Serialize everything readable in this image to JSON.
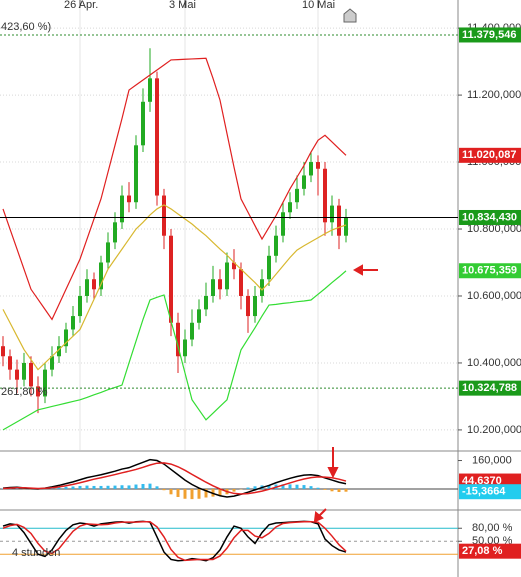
{
  "chart_data": [
    {
      "type": "candlestick",
      "categories": [
        null,
        null,
        null,
        null,
        null,
        null,
        null,
        null,
        null,
        null,
        null,
        "26 Apr.",
        null,
        null,
        null,
        null,
        null,
        null,
        null,
        null,
        null,
        null,
        null,
        null,
        null,
        null,
        "3 Mai",
        null,
        null,
        null,
        null,
        null,
        null,
        null,
        null,
        null,
        null,
        null,
        null,
        null,
        null,
        null,
        null,
        null,
        null,
        "10 Mai",
        null,
        null,
        null,
        null
      ],
      "open": [
        10450,
        10420,
        10380,
        10350,
        10400,
        10330,
        10300,
        10380,
        10420,
        10450,
        10500,
        10540,
        10600,
        10650,
        10620,
        10700,
        10760,
        10820,
        10900,
        10880,
        11050,
        11180,
        11250,
        10900,
        10780,
        10520,
        10420,
        10470,
        10520,
        10560,
        10600,
        10650,
        10620,
        10700,
        10680,
        10600,
        10540,
        10600,
        10650,
        10720,
        10780,
        10850,
        10880,
        10920,
        10960,
        11000,
        10980,
        10820,
        10870,
        10780
      ],
      "high": [
        10480,
        10440,
        10410,
        10430,
        10420,
        10360,
        10400,
        10450,
        10480,
        10520,
        10570,
        10630,
        10680,
        10670,
        10720,
        10790,
        10850,
        10930,
        10940,
        11080,
        11220,
        11340,
        11270,
        10920,
        10800,
        10550,
        10500,
        10560,
        10590,
        10640,
        10690,
        10680,
        10730,
        10740,
        10700,
        10620,
        10630,
        10680,
        10750,
        10810,
        10880,
        10910,
        10960,
        11000,
        11030,
        11020,
        11000,
        10900,
        10890,
        10860
      ],
      "low": [
        10390,
        10350,
        10310,
        10330,
        10300,
        10250,
        10280,
        10360,
        10400,
        10430,
        10480,
        10520,
        10580,
        10590,
        10600,
        10680,
        10740,
        10800,
        10850,
        10860,
        11030,
        11150,
        10870,
        10740,
        10480,
        10370,
        10400,
        10450,
        10500,
        10540,
        10580,
        10590,
        10600,
        10650,
        10560,
        10490,
        10520,
        10580,
        10630,
        10700,
        10760,
        10830,
        10860,
        10900,
        10940,
        10900,
        10780,
        10780,
        10740,
        10760
      ],
      "close": [
        10420,
        10380,
        10350,
        10400,
        10330,
        10300,
        10380,
        10420,
        10450,
        10500,
        10540,
        10600,
        10650,
        10620,
        10700,
        10760,
        10820,
        10900,
        10880,
        11050,
        11180,
        11250,
        10900,
        10780,
        10520,
        10420,
        10470,
        10520,
        10560,
        10600,
        10650,
        10620,
        10700,
        10680,
        10600,
        10540,
        10600,
        10650,
        10720,
        10780,
        10850,
        10880,
        10920,
        10960,
        11000,
        10980,
        10820,
        10870,
        10780,
        10834.43
      ],
      "up_color": "#22aa22",
      "down_color": "#dd2222",
      "series": [
        {
          "color": "#e02020",
          "values": [
            10860,
            10800,
            10740,
            10680,
            10620,
            10590,
            10560,
            10530,
            10575,
            10620,
            10665,
            10710,
            10770,
            10830,
            10890,
            10970,
            11050,
            11130,
            11215,
            11230,
            11245,
            11260,
            11275,
            11290,
            11305,
            11306,
            11307,
            11308,
            11309,
            11310,
            11250,
            11185,
            11085,
            10985,
            10890,
            10850,
            10810,
            10770,
            10805,
            10840,
            10880,
            10920,
            10955,
            10990,
            11030,
            11065,
            11080,
            11060,
            11040,
            11020
          ]
        },
        {
          "color": "#d8b830",
          "values": [
            10560,
            10520,
            10480,
            10440,
            10410,
            10380,
            10400,
            10420,
            10440,
            10460,
            10480,
            10500,
            10545,
            10590,
            10635,
            10680,
            10710,
            10740,
            10770,
            10800,
            10820,
            10842,
            10860,
            10872,
            10860,
            10845,
            10830,
            10815,
            10797,
            10780,
            10760,
            10740,
            10722,
            10700,
            10680,
            10660,
            10640,
            10618,
            10640,
            10665,
            10690,
            10715,
            10737,
            10750,
            10762,
            10774,
            10786,
            10797,
            10805,
            10812
          ]
        },
        {
          "color": "#33dd33",
          "values": [
            10200,
            10212,
            10224,
            10236,
            10248,
            10260,
            10265,
            10270,
            10275,
            10280,
            10285,
            10290,
            10297,
            10305,
            10312,
            10320,
            10327,
            10334,
            10400,
            10465,
            10530,
            10588,
            10596,
            10603,
            10525,
            10450,
            10370,
            10290,
            10260,
            10230,
            10250,
            10270,
            10290,
            10365,
            10439,
            10472,
            10505,
            10540,
            10573,
            10575,
            10578,
            10580,
            10583,
            10585,
            10588,
            10605,
            10622,
            10640,
            10657,
            10675
          ]
        }
      ],
      "ylim": [
        10140,
        11484
      ],
      "yticks": [
        {
          "value": 10200,
          "label": "10.200,000"
        },
        {
          "value": 10400,
          "label": "10.400,000"
        },
        {
          "value": 10600,
          "label": "10.600,000"
        },
        {
          "value": 10800,
          "label": "10.800,000"
        },
        {
          "value": 11000,
          "label": "11.000,000"
        },
        {
          "value": 11200,
          "label": "11.200,000"
        },
        {
          "value": 11400,
          "label": "11.400,000"
        }
      ],
      "grid": true,
      "levels": [
        {
          "label": "11.379,546",
          "value": 11379.546,
          "box": "#1a9a1a",
          "line": "#2e8b2e",
          "dashed": true,
          "note": "423,60 %)"
        },
        {
          "label": "11.020,087",
          "value": 11020.087,
          "box": "#e02020"
        },
        {
          "label": "10.834,430",
          "value": 10834.43,
          "box": "#1a9a1a",
          "line": "#000000",
          "dashed": false
        },
        {
          "label": "10.675,359",
          "value": 10675.359,
          "box": "#33cc33"
        },
        {
          "label": "10.324,788",
          "value": 10324.788,
          "box": "#1a9a1a",
          "line": "#2e8b2e",
          "dashed": true,
          "note": "261,80 %"
        }
      ]
    },
    {
      "type": "macd",
      "series": [
        {
          "color": "#000000",
          "values": [
            5,
            8,
            10,
            6,
            2,
            0,
            5,
            12,
            20,
            30,
            40,
            52,
            64,
            72,
            80,
            90,
            100,
            112,
            120,
            135,
            150,
            165,
            160,
            140,
            110,
            80,
            50,
            25,
            5,
            -10,
            -25,
            -38,
            -45,
            -40,
            -30,
            -18,
            -5,
            8,
            20,
            35,
            48,
            60,
            70,
            78,
            80,
            75,
            62,
            50,
            38,
            29.27
          ]
        },
        {
          "color": "#e02020",
          "values": [
            3,
            5,
            7,
            7,
            5,
            3,
            4,
            7,
            12,
            18,
            26,
            35,
            45,
            55,
            63,
            72,
            81,
            91,
            100,
            110,
            122,
            135,
            145,
            147,
            140,
            125,
            105,
            82,
            60,
            38,
            18,
            0,
            -15,
            -25,
            -28,
            -26,
            -20,
            -12,
            -2,
            10,
            22,
            34,
            46,
            56,
            64,
            68,
            67,
            63,
            55,
            44.637
          ]
        }
      ],
      "histogram": {
        "pos_color": "#33bbee",
        "neg_color": "#f0a030",
        "values": [
          2,
          3,
          3,
          -1,
          -3,
          -3,
          1,
          5,
          8,
          12,
          14,
          17,
          19,
          17,
          17,
          18,
          19,
          21,
          20,
          25,
          28,
          30,
          15,
          -7,
          -30,
          -45,
          -55,
          -57,
          -55,
          -48,
          -43,
          -38,
          -30,
          -15,
          -2,
          8,
          15,
          20,
          22,
          25,
          26,
          26,
          24,
          22,
          16,
          7,
          -5,
          -13,
          -17,
          -15.3664
        ]
      },
      "ylim": [
        -107,
        208
      ],
      "yticks": [
        {
          "value": 160,
          "label": "160,000"
        }
      ],
      "levels": [
        {
          "label": "44,6370",
          "value": 44.637,
          "box": "#e02020"
        },
        {
          "label": "-15,3664",
          "value": -15.3664,
          "box": "#22ccee"
        }
      ]
    },
    {
      "type": "stochastic",
      "series": [
        {
          "color": "#000000",
          "values": [
            85,
            90,
            88,
            70,
            45,
            20,
            15,
            30,
            55,
            75,
            88,
            92,
            90,
            85,
            90,
            92,
            94,
            95,
            92,
            95,
            96,
            94,
            60,
            25,
            8,
            5,
            6,
            10,
            8,
            5,
            12,
            30,
            60,
            85,
            80,
            60,
            45,
            70,
            88,
            92,
            93,
            94,
            95,
            96,
            95,
            90,
            55,
            40,
            30,
            25
          ]
        },
        {
          "color": "#e02020",
          "values": [
            80,
            86,
            89,
            82,
            68,
            45,
            27,
            22,
            33,
            53,
            73,
            85,
            90,
            89,
            88,
            89,
            92,
            94,
            94,
            94,
            95,
            95,
            83,
            60,
            31,
            13,
            6,
            7,
            8,
            8,
            8,
            16,
            34,
            58,
            75,
            75,
            62,
            58,
            68,
            83,
            91,
            93,
            94,
            95,
            95,
            94,
            80,
            62,
            42,
            27.08
          ]
        }
      ],
      "ylim": [
        -32.5,
        117.5
      ],
      "yticks": [
        {
          "value": 80,
          "label": "80,00 %"
        },
        {
          "value": 50,
          "label": "50,00 %"
        }
      ],
      "level_lines": [
        {
          "value": 80,
          "color": "#22bbcc"
        },
        {
          "value": 50,
          "color": "#999999"
        },
        {
          "value": 20,
          "color": "#f0a030"
        }
      ],
      "levels": [
        {
          "label": "27,08 %",
          "value": 27.08,
          "box": "#e02020"
        }
      ],
      "annotation": "4 stunden"
    }
  ]
}
